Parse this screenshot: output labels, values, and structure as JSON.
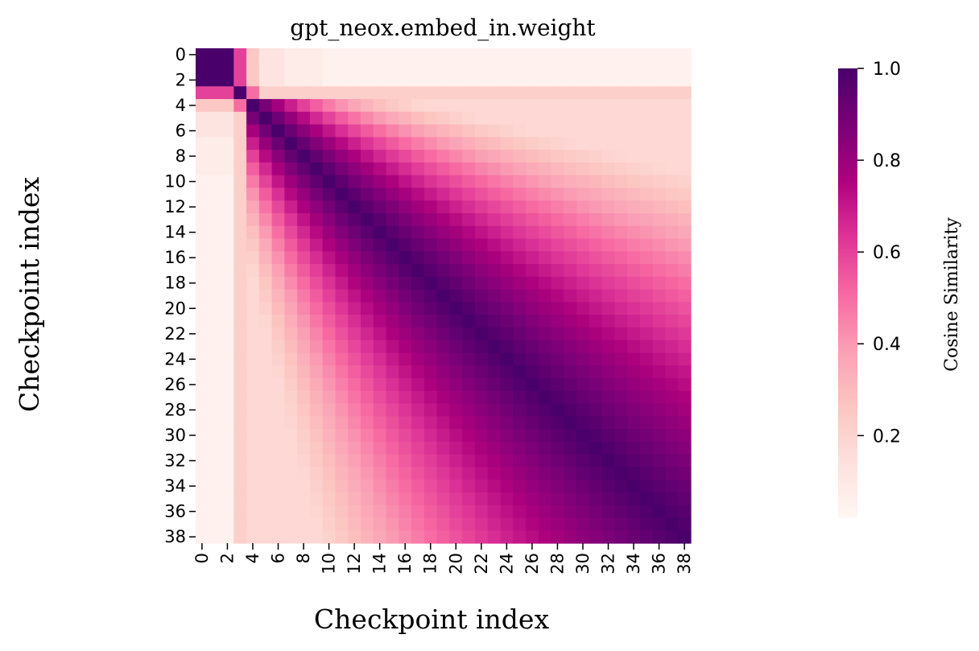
{
  "chart_data": {
    "type": "heatmap",
    "title": "gpt_neox.embed_in.weight",
    "xlabel": "Checkpoint index",
    "ylabel": "Checkpoint index",
    "n": 39,
    "x": [
      0,
      1,
      2,
      3,
      4,
      5,
      6,
      7,
      8,
      9,
      10,
      11,
      12,
      13,
      14,
      15,
      16,
      17,
      18,
      19,
      20,
      21,
      22,
      23,
      24,
      25,
      26,
      27,
      28,
      29,
      30,
      31,
      32,
      33,
      34,
      35,
      36,
      37,
      38
    ],
    "y": [
      0,
      1,
      2,
      3,
      4,
      5,
      6,
      7,
      8,
      9,
      10,
      11,
      12,
      13,
      14,
      15,
      16,
      17,
      18,
      19,
      20,
      21,
      22,
      23,
      24,
      25,
      26,
      27,
      28,
      29,
      30,
      31,
      32,
      33,
      34,
      35,
      36,
      37,
      38
    ],
    "x_tick_labels": [
      "0",
      "2",
      "4",
      "6",
      "8",
      "10",
      "12",
      "14",
      "16",
      "18",
      "20",
      "22",
      "24",
      "26",
      "28",
      "30",
      "32",
      "34",
      "36",
      "38"
    ],
    "y_tick_labels": [
      "0",
      "2",
      "4",
      "6",
      "8",
      "10",
      "12",
      "14",
      "16",
      "18",
      "20",
      "22",
      "24",
      "26",
      "28",
      "30",
      "32",
      "34",
      "36",
      "38"
    ],
    "colorbar": {
      "label": "Cosine Similarity",
      "range": [
        0.02,
        1.0
      ],
      "ticks": [
        "0.2",
        "0.4",
        "0.6",
        "0.8",
        "1.0"
      ],
      "tick_values": [
        0.2,
        0.4,
        0.6,
        0.8,
        1.0
      ]
    },
    "colormap": "RdPu",
    "colors": [
      "#fff7f3",
      "#fde0dd",
      "#fcc5c0",
      "#fa9fb5",
      "#f768a1",
      "#dd3497",
      "#ae017e",
      "#7a0177",
      "#49006a"
    ],
    "description_of_values": {
      "block_0_2_self": 1.0,
      "rows_0_2_vs_4_plus": 0.06,
      "checkpoint_3_vs_0_2": 0.6,
      "checkpoint_3_vs_4_plus": 0.22,
      "diagonal": 1.0,
      "late_checkpoints_30_38_mutual": 0.96
    }
  }
}
